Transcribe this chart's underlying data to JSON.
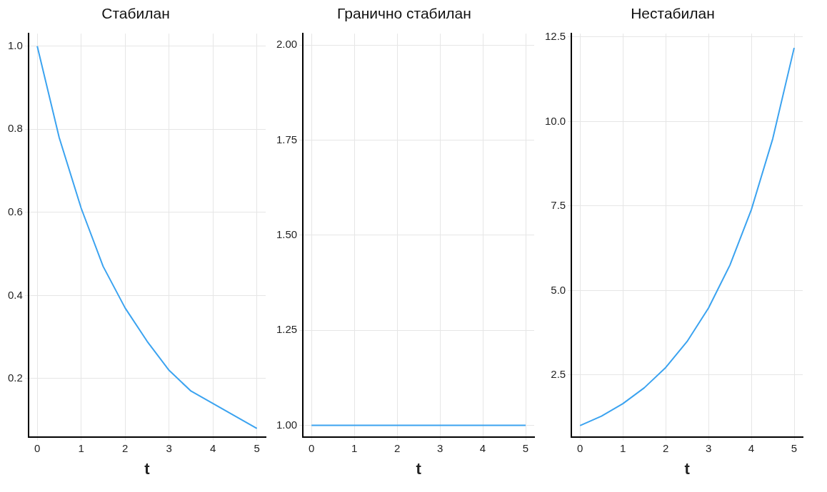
{
  "chart_data": [
    {
      "type": "line",
      "title": "Стабилан",
      "xlabel": "t",
      "x": [
        0,
        0.5,
        1,
        1.5,
        2,
        2.5,
        3,
        3.5,
        4,
        4.5,
        5
      ],
      "series": [
        {
          "color": "#3ba3f0",
          "values": [
            1,
            0.78,
            0.61,
            0.47,
            0.37,
            0.29,
            0.22,
            0.17,
            0.14,
            0.11,
            0.08
          ]
        }
      ],
      "xlim": [
        -0.2,
        5.2
      ],
      "xticks": [
        0,
        1,
        2,
        3,
        4,
        5
      ],
      "ylim": [
        0.06,
        1.03
      ],
      "yticks": [
        0.2,
        0.4,
        0.6,
        0.8,
        {
          "value": 1,
          "label": "1.0"
        }
      ],
      "grid": true
    },
    {
      "type": "line",
      "title": "Гранично стабилан",
      "xlabel": "t",
      "x": [
        0,
        0.5,
        1,
        1.5,
        2,
        2.5,
        3,
        3.5,
        4,
        4.5,
        5
      ],
      "series": [
        {
          "color": "#3ba3f0",
          "values": [
            1,
            1,
            1,
            1,
            1,
            1,
            1,
            1,
            1,
            1,
            1
          ]
        }
      ],
      "xlim": [
        -0.2,
        5.2
      ],
      "xticks": [
        0,
        1,
        2,
        3,
        4,
        5
      ],
      "ylim": [
        0.97,
        2.03
      ],
      "yticks": [
        {
          "value": 1,
          "label": "1.00"
        },
        1.25,
        {
          "value": 1.5,
          "label": "1.50"
        },
        1.75,
        {
          "value": 2,
          "label": "2.00"
        }
      ],
      "grid": true
    },
    {
      "type": "line",
      "title": "Нестабилан",
      "xlabel": "t",
      "x": [
        0,
        0.5,
        1,
        1.5,
        2,
        2.5,
        3,
        3.5,
        4,
        4.5,
        5
      ],
      "series": [
        {
          "color": "#3ba3f0",
          "values": [
            1,
            1.28,
            1.65,
            2.12,
            2.72,
            3.49,
            4.48,
            5.75,
            7.39,
            9.49,
            12.18
          ]
        }
      ],
      "xlim": [
        -0.2,
        5.2
      ],
      "xticks": [
        0,
        1,
        2,
        3,
        4,
        5
      ],
      "ylim": [
        0.67,
        12.6
      ],
      "yticks": [
        2.5,
        {
          "value": 5,
          "label": "5.0"
        },
        7.5,
        {
          "value": 10,
          "label": "10.0"
        },
        12.5
      ],
      "grid": true
    }
  ]
}
